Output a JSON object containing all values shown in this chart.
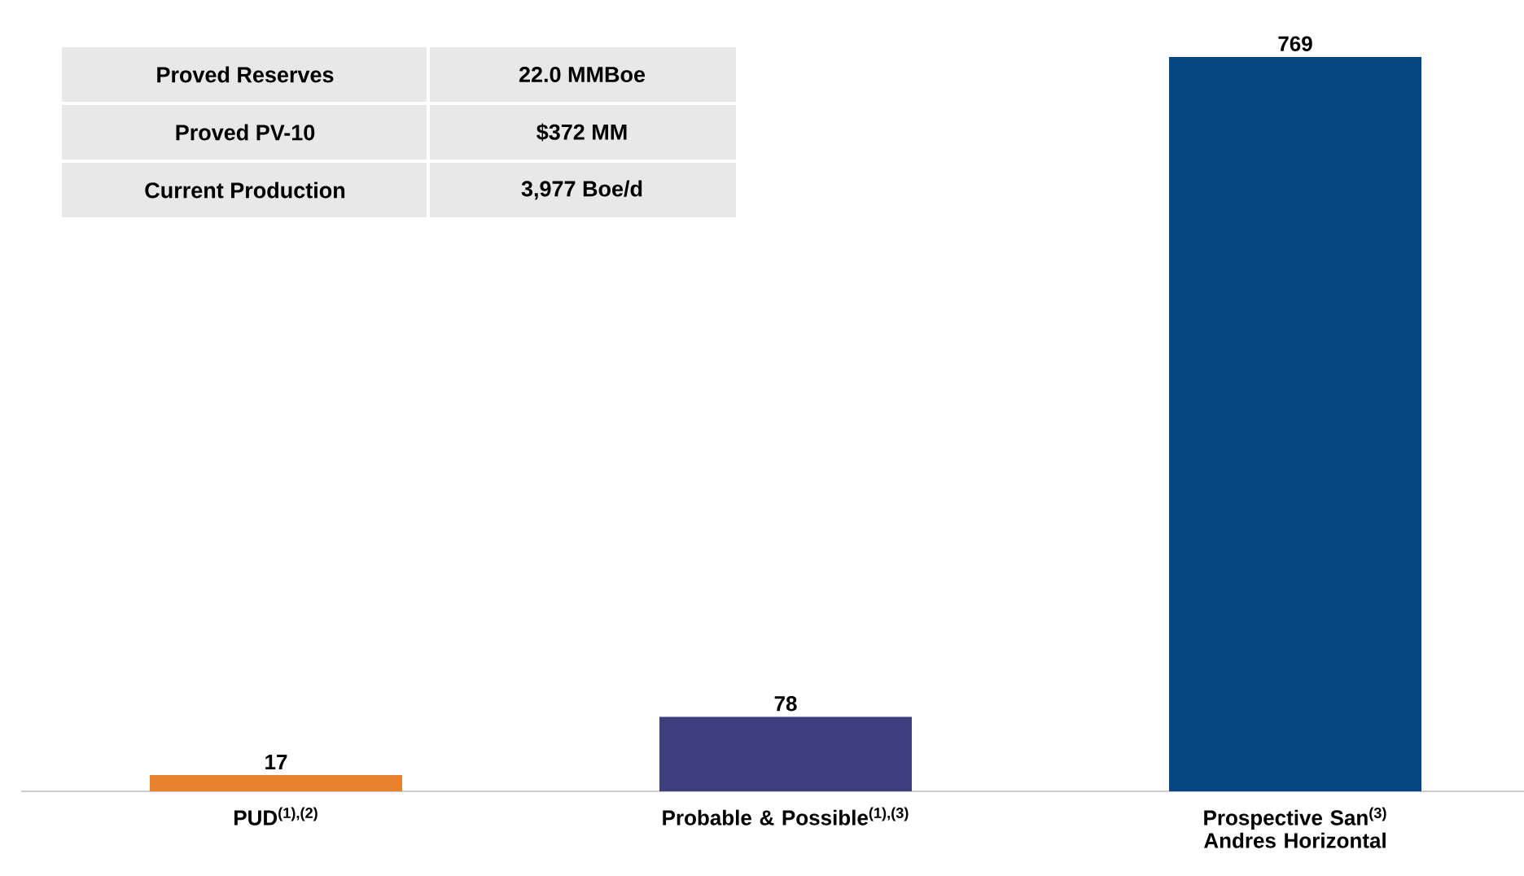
{
  "chart_data": {
    "type": "bar",
    "categories": [
      "PUD$^{(1),(2)}$",
      "Probable & Possible$^{(1),(3)}$",
      "Prospective San$^{(3)}$ Andres Horizontal"
    ],
    "values": [
      17,
      78,
      769
    ],
    "colors": [
      "#e8822e",
      "#3e3f7d",
      "#054782"
    ],
    "data_labels": true,
    "annotations": [
      "Proved Reserves",
      "22.0 MMBoe",
      "Proved PV-10",
      "$372 MM",
      "Current Production",
      "3,977 Boe/d"
    ]
  }
}
